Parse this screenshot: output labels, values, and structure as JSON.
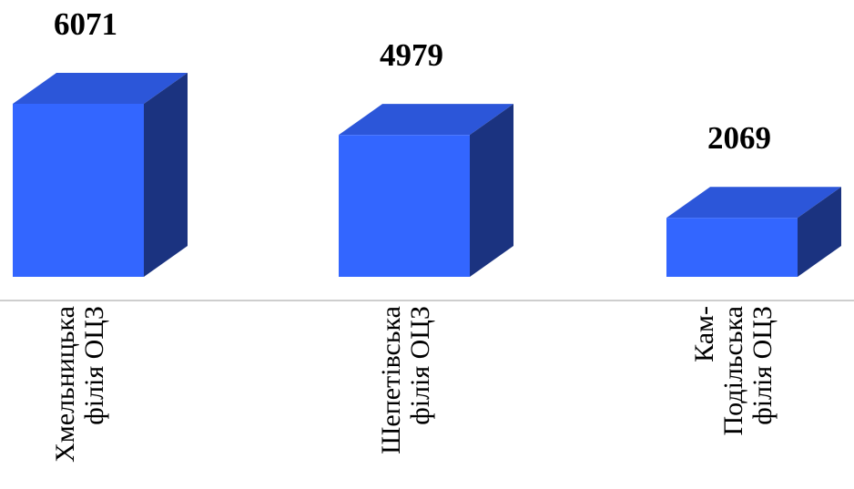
{
  "chart_data": {
    "type": "bar",
    "categories": [
      [
        "Хмельницька",
        "філія ОЦЗ"
      ],
      [
        "Шепетівська",
        "філія ОЦЗ"
      ],
      [
        "Кам-",
        "Подільська",
        "філія ОЦЗ"
      ]
    ],
    "values": [
      6071,
      4979,
      2069
    ],
    "data_labels": [
      "6071",
      "4979",
      "2069"
    ],
    "title": "",
    "xlabel": "",
    "ylabel": "",
    "grid": false,
    "legend": "none",
    "style": "3d-column",
    "colors": {
      "front": "#3366ff",
      "top": "#2c56d9",
      "side": "#1b3380",
      "axis": "#bdbdbd"
    }
  }
}
